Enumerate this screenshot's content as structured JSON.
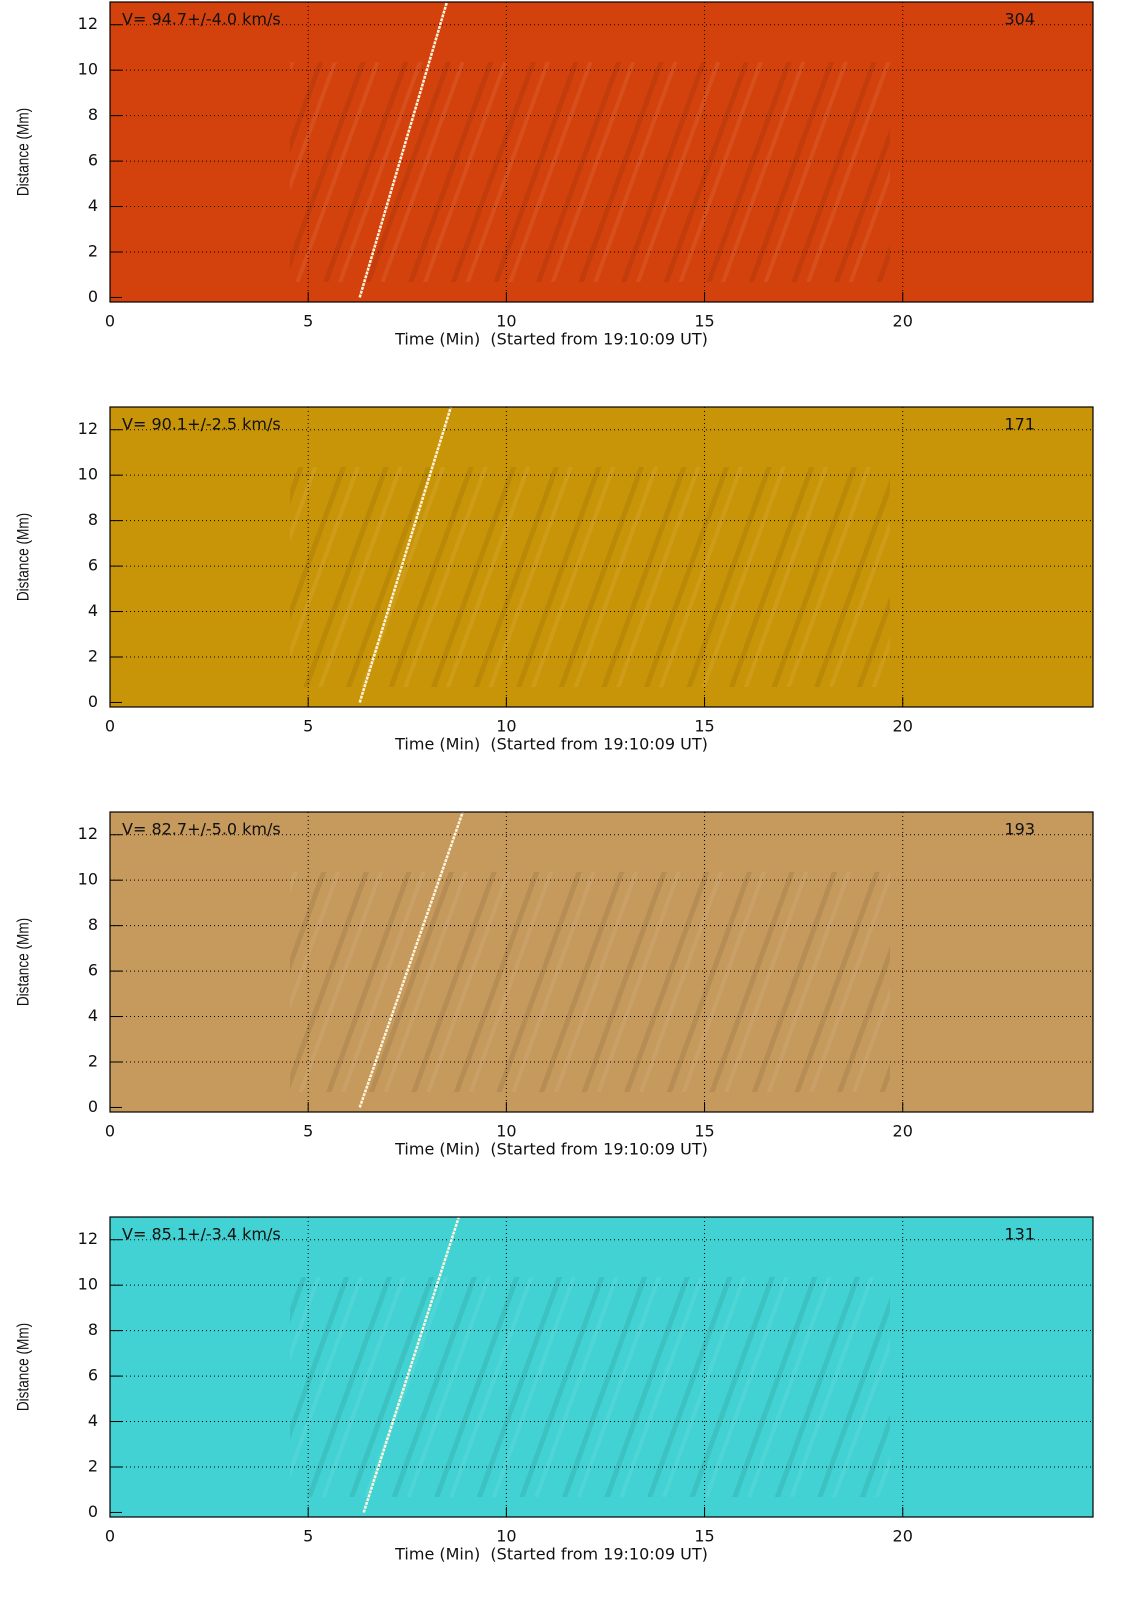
{
  "chart_data": [
    {
      "type": "line",
      "annotation": "V= 94.7+/-4.0 km/s",
      "label": "304",
      "xlabel": "Time (Min)  (Started from 19:10:09 UT)",
      "ylabel": "Distance (Mm)",
      "xlim": [
        0,
        24.8
      ],
      "ylim": [
        -0.2,
        13
      ],
      "xticks": [
        0,
        5,
        10,
        15,
        20
      ],
      "yticks": [
        0,
        2,
        4,
        6,
        8,
        10,
        12
      ],
      "grid": true,
      "background": "#d3420c",
      "series": [
        {
          "color": "#fff4dc",
          "x": [
            6.3,
            8.5
          ],
          "values": [
            0,
            13
          ]
        }
      ]
    },
    {
      "type": "line",
      "annotation": "V= 90.1+/-2.5 km/s",
      "label": "171",
      "xlabel": "Time (Min)  (Started from 19:10:09 UT)",
      "ylabel": "Distance (Mm)",
      "xlim": [
        0,
        24.8
      ],
      "ylim": [
        -0.2,
        13
      ],
      "xticks": [
        0,
        5,
        10,
        15,
        20
      ],
      "yticks": [
        0,
        2,
        4,
        6,
        8,
        10,
        12
      ],
      "grid": true,
      "background": "#c99508",
      "series": [
        {
          "color": "#fff4dc",
          "x": [
            6.3,
            8.6
          ],
          "values": [
            0,
            13
          ]
        }
      ]
    },
    {
      "type": "line",
      "annotation": "V= 82.7+/-5.0 km/s",
      "label": "193",
      "xlabel": "Time (Min)  (Started from 19:10:09 UT)",
      "ylabel": "Distance (Mm)",
      "xlim": [
        0,
        24.8
      ],
      "ylim": [
        -0.2,
        13
      ],
      "xticks": [
        0,
        5,
        10,
        15,
        20
      ],
      "yticks": [
        0,
        2,
        4,
        6,
        8,
        10,
        12
      ],
      "grid": true,
      "background": "#c59a5c",
      "series": [
        {
          "color": "#fff4dc",
          "x": [
            6.3,
            8.9
          ],
          "values": [
            0,
            13
          ]
        }
      ]
    },
    {
      "type": "line",
      "annotation": "V= 85.1+/-3.4 km/s",
      "label": "131",
      "xlabel": "Time (Min)  (Started from 19:10:09 UT)",
      "ylabel": "Distance (Mm)",
      "xlim": [
        0,
        24.8
      ],
      "ylim": [
        -0.2,
        13
      ],
      "xticks": [
        0,
        5,
        10,
        15,
        20
      ],
      "yticks": [
        0,
        2,
        4,
        6,
        8,
        10,
        12
      ],
      "grid": true,
      "background": "#42d2d3",
      "series": [
        {
          "color": "#fff4dc",
          "x": [
            6.4,
            8.8
          ],
          "values": [
            0,
            13
          ]
        }
      ]
    }
  ]
}
